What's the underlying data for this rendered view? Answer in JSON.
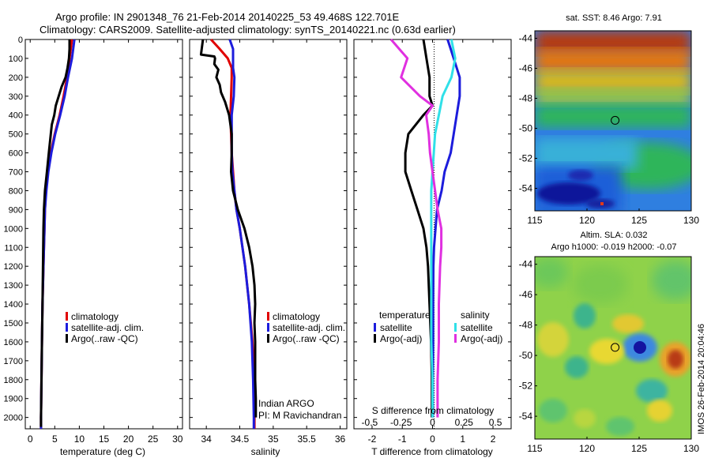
{
  "header": {
    "line1": "Argo profile: IN 2901348_76 21-Feb-2014 20140225_53 49.468S 122.701E",
    "line2": "Climatology: CARS2009. Satellite-adjusted climatology: synTS_20140221.nc (0.63d earlier)"
  },
  "colors": {
    "climatology": "#e00000",
    "satellite": "#1c1cdc",
    "argo": "#000000",
    "sat_diff_S": "#30e0e8",
    "argo_diff_S": "#e030e0"
  },
  "chart_data": [
    {
      "type": "line",
      "xlabel": "temperature (deg C)",
      "ylabel": "",
      "xlim": [
        -1,
        31
      ],
      "ylim": [
        2060,
        0
      ],
      "xticks": [
        "0",
        "5",
        "10",
        "15",
        "20",
        "25",
        "30"
      ],
      "yticks": [
        "0",
        "100",
        "200",
        "300",
        "400",
        "500",
        "600",
        "700",
        "800",
        "900",
        "1000",
        "1100",
        "1200",
        "1300",
        "1400",
        "1500",
        "1600",
        "1700",
        "1800",
        "1900",
        "2000"
      ],
      "legend": [
        "climatology",
        "satellite-adj. clim.",
        "Argo(..raw -QC)"
      ],
      "legend_position": "lower-right",
      "series": [
        {
          "name": "climatology",
          "color": "#e00000",
          "depth": [
            0,
            100,
            200,
            300,
            400,
            500,
            600,
            700,
            800,
            900,
            1000,
            1200,
            1400,
            1600,
            1800,
            2000,
            2060
          ],
          "values": [
            8.5,
            8.0,
            7.5,
            6.8,
            6.0,
            5.0,
            4.2,
            3.6,
            3.2,
            3.0,
            2.9,
            2.7,
            2.5,
            2.4,
            2.3,
            2.2,
            2.2
          ]
        },
        {
          "name": "satellite-adj. clim.",
          "color": "#1c1cdc",
          "depth": [
            0,
            100,
            200,
            300,
            400,
            500,
            600,
            700,
            800,
            900,
            1000,
            1200,
            1400,
            1600,
            1800,
            2000,
            2060
          ],
          "values": [
            9.0,
            8.5,
            7.7,
            7.0,
            6.1,
            5.1,
            4.3,
            3.7,
            3.3,
            3.0,
            2.9,
            2.7,
            2.5,
            2.4,
            2.3,
            2.2,
            2.2
          ]
        },
        {
          "name": "Argo(..raw -QC)",
          "color": "#000000",
          "depth": [
            0,
            50,
            100,
            150,
            200,
            250,
            300,
            350,
            400,
            450,
            500,
            600,
            700,
            800,
            900,
            1000,
            1200,
            1400,
            1600,
            1800,
            2000,
            2050
          ],
          "values": [
            8.0,
            8.0,
            7.9,
            7.6,
            7.2,
            6.4,
            5.8,
            5.2,
            4.9,
            4.4,
            4.2,
            3.8,
            3.4,
            3.0,
            2.8,
            2.7,
            2.6,
            2.5,
            2.4,
            2.3,
            2.2,
            2.2
          ]
        }
      ]
    },
    {
      "type": "line",
      "xlabel": "salinity",
      "xlim": [
        33.75,
        36.1
      ],
      "ylim": [
        2060,
        0
      ],
      "xticks": [
        "34",
        "34.5",
        "35",
        "35.5",
        "36"
      ],
      "legend": [
        "climatology",
        "satellite-adj. clim.",
        "Argo(..raw -QC)"
      ],
      "legend_position": "lower-right",
      "annotations": [
        "Indian ARGO",
        "PI: M Ravichandran"
      ],
      "series": [
        {
          "name": "climatology",
          "color": "#e00000",
          "depth": [
            0,
            50,
            100,
            150,
            200,
            300,
            400,
            500,
            600,
            700,
            800,
            900,
            1000,
            1200,
            1400,
            1600,
            1800,
            2000,
            2060
          ],
          "values": [
            34.07,
            34.2,
            34.32,
            34.38,
            34.38,
            34.37,
            34.36,
            34.37,
            34.38,
            34.4,
            34.42,
            34.45,
            34.5,
            34.58,
            34.64,
            34.69,
            34.71,
            34.72,
            34.72
          ]
        },
        {
          "name": "satellite-adj. clim.",
          "color": "#1c1cdc",
          "depth": [
            0,
            50,
            100,
            150,
            200,
            300,
            400,
            500,
            600,
            700,
            800,
            900,
            1000,
            1200,
            1400,
            1600,
            1800,
            2000,
            2060
          ],
          "values": [
            34.35,
            34.4,
            34.4,
            34.4,
            34.42,
            34.41,
            34.38,
            34.38,
            34.38,
            34.39,
            34.42,
            34.45,
            34.5,
            34.58,
            34.64,
            34.68,
            34.7,
            34.71,
            34.71
          ]
        },
        {
          "name": "Argo(..raw -QC)",
          "color": "#000000",
          "depth": [
            0,
            80,
            90,
            100,
            130,
            160,
            200,
            240,
            280,
            330,
            400,
            500,
            600,
            700,
            800,
            900,
            1000,
            1100,
            1200,
            1300,
            1400,
            1500,
            1600,
            1700,
            1800,
            1900,
            2000
          ],
          "values": [
            33.95,
            33.92,
            34.12,
            34.13,
            34.12,
            34.18,
            34.15,
            34.2,
            34.22,
            34.28,
            34.34,
            34.38,
            34.38,
            34.37,
            34.4,
            34.47,
            34.57,
            34.64,
            34.69,
            34.72,
            34.73,
            34.72,
            34.73,
            34.73,
            34.73,
            34.74,
            34.74
          ]
        }
      ]
    },
    {
      "type": "line",
      "xlabel": "T difference from climatology",
      "top_axis_label": "S difference from climatology",
      "xlim": [
        -2.6,
        2.6
      ],
      "ylim": [
        2060,
        0
      ],
      "xticks": [
        "-2",
        "-1",
        "0",
        "1",
        "2"
      ],
      "top_ticks": [
        "-0.5",
        "-0.25",
        "0",
        "0.25",
        "0.5"
      ],
      "legend_groups": [
        {
          "title": "temperature",
          "items": [
            "satellite",
            "Argo(-adj)"
          ]
        },
        {
          "title": "salinity",
          "items": [
            "satellite",
            "Argo(-adj)"
          ]
        }
      ],
      "series": [
        {
          "name": "temperature satellite",
          "color": "#1c1cdc",
          "depth": [
            0,
            50,
            100,
            200,
            300,
            400,
            500,
            600,
            700,
            800,
            900,
            1000,
            1100,
            1200,
            1400,
            1600,
            1800,
            2000
          ],
          "values": [
            0.5,
            0.6,
            0.7,
            0.9,
            0.9,
            0.8,
            0.7,
            0.6,
            0.4,
            0.3,
            0.15,
            0.1,
            0.05,
            0.03,
            0.02,
            0.02,
            0.01,
            0.01
          ]
        },
        {
          "name": "temperature Argo(-adj)",
          "color": "#000000",
          "depth": [
            0,
            100,
            200,
            300,
            350,
            400,
            500,
            600,
            700,
            800,
            900,
            1000,
            1100,
            1200,
            1400,
            1600,
            1800,
            2000
          ],
          "values": [
            -0.3,
            -0.2,
            -0.1,
            -0.1,
            0.0,
            -0.3,
            -0.8,
            -0.9,
            -0.9,
            -0.7,
            -0.5,
            -0.3,
            -0.2,
            -0.15,
            -0.1,
            -0.05,
            -0.02,
            -0.02
          ]
        },
        {
          "name": "salinity satellite",
          "color": "#30e0e8",
          "depth": [
            0,
            100,
            200,
            300,
            400,
            500,
            600,
            700,
            800,
            900,
            1000,
            1200,
            1400,
            1600,
            1800,
            2000
          ],
          "values": [
            0.15,
            0.18,
            0.15,
            0.08,
            0.05,
            0.02,
            0.01,
            0.0,
            -0.01,
            -0.01,
            -0.01,
            -0.01,
            -0.01,
            -0.01,
            0.0,
            0.0
          ]
        },
        {
          "name": "salinity Argo(-adj)",
          "color": "#e030e0",
          "depth": [
            0,
            100,
            200,
            300,
            350,
            400,
            500,
            600,
            700,
            800,
            900,
            1000,
            1100,
            1200,
            1400,
            1600,
            1800,
            2000
          ],
          "values": [
            -0.33,
            -0.2,
            -0.25,
            -0.1,
            0.0,
            -0.05,
            -0.03,
            -0.02,
            0.0,
            0.02,
            0.04,
            0.07,
            0.07,
            0.06,
            0.05,
            0.05,
            0.04,
            0.04
          ]
        }
      ]
    },
    {
      "type": "heatmap",
      "title": "sat. SST: 8.46 Argo: 7.91",
      "xlim": [
        115,
        130
      ],
      "ylim": [
        -55.5,
        -43.5
      ],
      "xticks": [
        "115",
        "120",
        "125",
        "130"
      ],
      "yticks": [
        "-44",
        "-46",
        "-48",
        "-50",
        "-52",
        "-54"
      ],
      "marker": [
        122.7,
        -49.47
      ]
    },
    {
      "type": "heatmap",
      "title": "Altim. SLA: 0.032",
      "subtitle": "Argo h1000: -0.019 h2000: -0.07",
      "xlim": [
        115,
        130
      ],
      "ylim": [
        -55.5,
        -43.5
      ],
      "xticks": [
        "115",
        "120",
        "125",
        "130"
      ],
      "yticks": [
        "-44",
        "-46",
        "-48",
        "-50",
        "-52",
        "-54"
      ],
      "marker": [
        122.7,
        -49.47
      ],
      "annotation": "IMOS 26-Feb-2014 20:04:46"
    }
  ]
}
